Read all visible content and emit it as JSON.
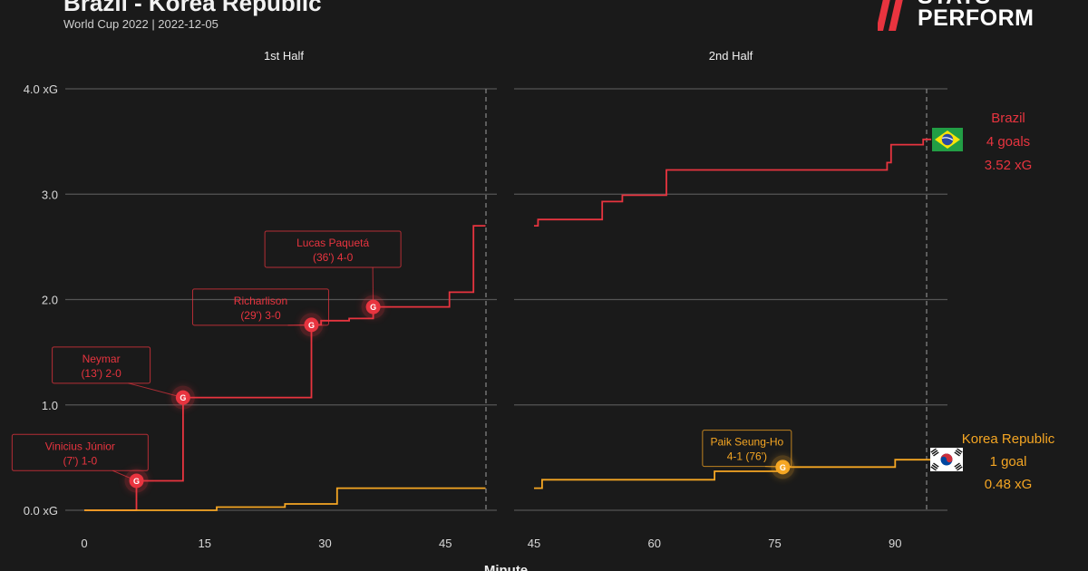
{
  "header": {
    "title": "Brazil - Korea Republic",
    "subtitle": "World Cup 2022 | 2022-12-05",
    "logo_line1": "STATS",
    "logo_line2": "PERFORM"
  },
  "colors": {
    "background": "#1a1a1a",
    "brazil": "#e8343f",
    "korea": "#f5a623",
    "grid": "#555555",
    "text": "#ffffff",
    "axis_text": "#d9d9d9"
  },
  "chart_data": {
    "type": "line",
    "xlabel": "Minute",
    "ylim": [
      0,
      4
    ],
    "ytick_values": [
      0,
      1,
      2,
      3,
      4
    ],
    "ytick_labels": [
      "0.0 xG",
      "1.0",
      "2.0",
      "3.0",
      "4.0 xG"
    ],
    "grid": true,
    "panels": [
      {
        "label": "1st Half",
        "xlim": [
          0,
          48
        ],
        "xticks": [
          0,
          15,
          30,
          45
        ],
        "end_minute": 50
      },
      {
        "label": "2nd Half",
        "xlim": [
          45,
          95
        ],
        "xticks": [
          45,
          60,
          75,
          90
        ],
        "end_minute": 94.5
      }
    ],
    "series": [
      {
        "name": "Brazil",
        "summary": [
          "Brazil",
          "4 goals",
          "3.52 xG"
        ],
        "first_half": [
          [
            0,
            0
          ],
          [
            6.5,
            0
          ],
          [
            6.5,
            0.28
          ],
          [
            12.3,
            0.28
          ],
          [
            12.3,
            1.07
          ],
          [
            28.3,
            1.07
          ],
          [
            28.3,
            1.76
          ],
          [
            29.5,
            1.76
          ],
          [
            29.5,
            1.8
          ],
          [
            33,
            1.8
          ],
          [
            33,
            1.82
          ],
          [
            36,
            1.82
          ],
          [
            36,
            1.93
          ],
          [
            45.5,
            1.93
          ],
          [
            45.5,
            2.07
          ],
          [
            48.5,
            2.07
          ],
          [
            48.5,
            2.7
          ],
          [
            50,
            2.7
          ]
        ],
        "second_half": [
          [
            45,
            2.7
          ],
          [
            45.5,
            2.7
          ],
          [
            45.5,
            2.76
          ],
          [
            53.5,
            2.76
          ],
          [
            53.5,
            2.93
          ],
          [
            56,
            2.93
          ],
          [
            56,
            2.99
          ],
          [
            61.5,
            2.99
          ],
          [
            61.5,
            3.23
          ],
          [
            89,
            3.23
          ],
          [
            89,
            3.3
          ],
          [
            89.5,
            3.3
          ],
          [
            89.5,
            3.47
          ],
          [
            93.5,
            3.47
          ],
          [
            93.5,
            3.52
          ],
          [
            94.5,
            3.52
          ]
        ],
        "goals": [
          {
            "panel": 0,
            "minute": 6.5,
            "xg": 0.28,
            "name": "Vinicius Júnior",
            "detail": "(7') 1-0",
            "box": [
              -9,
              0.72
            ]
          },
          {
            "panel": 0,
            "minute": 12.3,
            "xg": 1.07,
            "name": "Neymar",
            "detail": "(13') 2-0",
            "box": [
              -4,
              1.55
            ]
          },
          {
            "panel": 0,
            "minute": 28.3,
            "xg": 1.76,
            "name": "Richarlison",
            "detail": "(29') 3-0",
            "box": [
              13.5,
              2.1
            ]
          },
          {
            "panel": 0,
            "minute": 36,
            "xg": 1.93,
            "name": "Lucas Paquetá",
            "detail": "(36') 4-0",
            "box": [
              22.5,
              2.65
            ]
          }
        ]
      },
      {
        "name": "Korea Republic",
        "summary": [
          "Korea Republic",
          "1 goal",
          "0.48 xG"
        ],
        "first_half": [
          [
            0,
            0
          ],
          [
            16.5,
            0
          ],
          [
            16.5,
            0.03
          ],
          [
            25,
            0.03
          ],
          [
            25,
            0.06
          ],
          [
            31.5,
            0.06
          ],
          [
            31.5,
            0.21
          ],
          [
            50,
            0.21
          ]
        ],
        "second_half": [
          [
            45,
            0.21
          ],
          [
            46,
            0.21
          ],
          [
            46,
            0.29
          ],
          [
            67.5,
            0.29
          ],
          [
            67.5,
            0.37
          ],
          [
            76,
            0.37
          ],
          [
            76,
            0.41
          ],
          [
            90,
            0.41
          ],
          [
            90,
            0.48
          ],
          [
            94.5,
            0.48
          ]
        ],
        "goals": [
          {
            "panel": 1,
            "minute": 76,
            "xg": 0.41,
            "name": "Paik Seung-Ho",
            "detail": "4-1 (76')",
            "box": [
              66,
              0.76
            ]
          }
        ]
      }
    ]
  }
}
